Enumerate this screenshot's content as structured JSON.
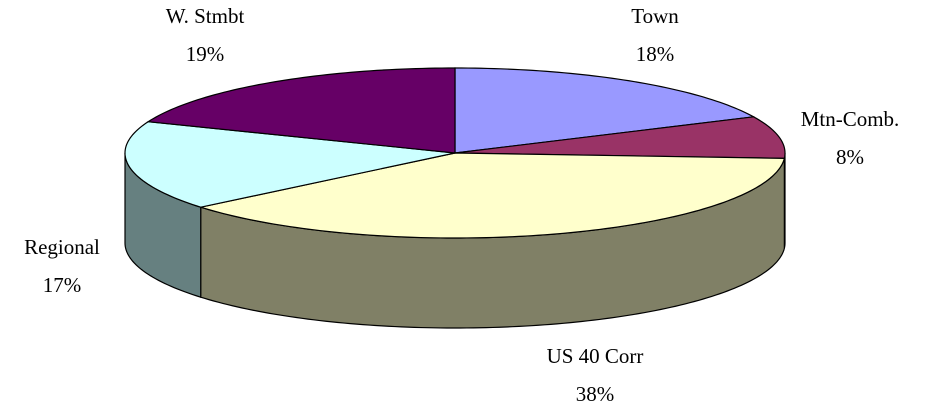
{
  "chart_data": {
    "type": "pie",
    "categories": [
      "Town",
      "Mtn-Comb.",
      "US 40 Corr",
      "Regional",
      "W. Stmbt"
    ],
    "values": [
      18,
      8,
      38,
      17,
      19
    ],
    "value_labels": [
      "18%",
      "8%",
      "38%",
      "17%",
      "19%"
    ],
    "colors": [
      "#9999ff",
      "#993366",
      "#ffffcc",
      "#ccffff",
      "#660066"
    ]
  }
}
